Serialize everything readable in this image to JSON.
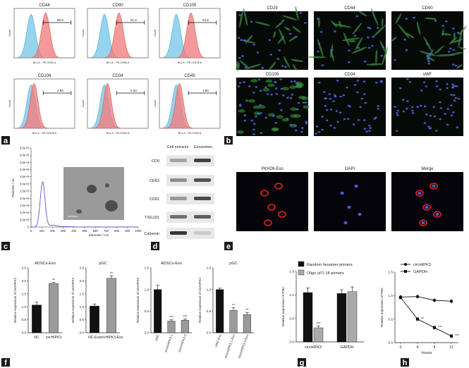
{
  "panels": {
    "a": {
      "letter": "a",
      "histograms": [
        {
          "title": "CD44",
          "gate": "90.6",
          "xlabel": "BL2-A :: PE-CD44-A",
          "ylabel": "Count",
          "positive": true
        },
        {
          "title": "CD90",
          "gate": "91.9",
          "xlabel": "BL2-A :: PE-CD90-A",
          "ylabel": "Count",
          "positive": true
        },
        {
          "title": "CD105",
          "gate": "94.8",
          "xlabel": "BL2-A :: PE-CD105-A",
          "ylabel": "Count",
          "positive": true
        },
        {
          "title": "CD106",
          "gate": "2.93",
          "xlabel": "BL2-A :: PE-CD106-A",
          "ylabel": "Count",
          "positive": false
        },
        {
          "title": "CD34",
          "gate": "0.53",
          "xlabel": "BL2-A :: PE-CD34-A",
          "ylabel": "Count",
          "positive": false
        },
        {
          "title": "CD45",
          "gate": "1.90",
          "xlabel": "BL2-A :: PE-CD45-A",
          "ylabel": "Count",
          "positive": false
        }
      ]
    },
    "b": {
      "letter": "b",
      "images": [
        "CD29",
        "CD44",
        "CD90",
        "CD105",
        "CD34",
        "vWF"
      ]
    },
    "c": {
      "letter": "c",
      "ylabel": "Particles / mL",
      "xlabel": "Diameter / nm",
      "yticks": [
        "5.5e+6",
        "5.0e+6",
        "4.5e+6",
        "4.0e+6",
        "3.5e+6",
        "3.0e+6",
        "2.5e+6",
        "2.0e+6",
        "1.5e+6",
        "1.0e+6",
        "5.0e+5",
        "0"
      ],
      "xticks": [
        "0",
        "100",
        "200",
        "300",
        "400",
        "500",
        "600",
        "700",
        "800",
        "900",
        "1000"
      ]
    },
    "d": {
      "letter": "d",
      "columns": [
        "Cell extracts",
        "Exosomes"
      ],
      "bands": [
        "CD9",
        "CD63",
        "CD81",
        "TSG101",
        "Calnexin"
      ]
    },
    "e": {
      "letter": "e",
      "images": [
        "PKH26-Exo",
        "DAPI",
        "Merge"
      ]
    },
    "f": {
      "letter": "f",
      "charts": [
        {
          "title": "ADSCs-Exo",
          "ylabel": "Relative expression of circHIPK3",
          "categories": [
            "NC",
            "circHIPK3"
          ],
          "values": [
            1.07,
            1.9
          ],
          "errors": [
            0.12,
            0.04
          ],
          "sig": [
            "",
            "**"
          ],
          "ylim": [
            0,
            2.5
          ],
          "yticks": [
            "0.0",
            "0.5",
            "1.0",
            "1.5",
            "2.0",
            "2.5"
          ]
        },
        {
          "title": "pGC",
          "ylabel": "Relative expression of circHIPK3",
          "categories": [
            "NC-Exo",
            "circHIPK3-Exo"
          ],
          "values": [
            1.03,
            2.1
          ],
          "errors": [
            0.08,
            0.1
          ],
          "sig": [
            "",
            "**"
          ],
          "ylim": [
            0,
            2.5
          ],
          "yticks": [
            "0.0",
            "0.5",
            "1.0",
            "1.5",
            "2.0",
            "2.5"
          ]
        },
        {
          "title": "ADSCs-Exo",
          "ylabel": "Relative expression of circHIPK3",
          "categories": [
            "siNC",
            "sicircHIPK3-1",
            "sicircHIPK3-2"
          ],
          "values": [
            1.0,
            0.27,
            0.29
          ],
          "errors": [
            0.1,
            0.03,
            0.03
          ],
          "sig": [
            "",
            "***",
            "***"
          ],
          "ylim": [
            0,
            1.5
          ],
          "yticks": [
            "0.0",
            "0.5",
            "1.0",
            "1.5"
          ]
        },
        {
          "title": "pGC",
          "ylabel": "Relative expression of circHIPK3",
          "categories": [
            "siNC-Exo",
            "sicircHIPK3-1-Exo",
            "sicircHIPK3-2-Exo"
          ],
          "values": [
            1.0,
            0.52,
            0.42
          ],
          "errors": [
            0.03,
            0.06,
            0.05
          ],
          "sig": [
            "",
            "**",
            "**"
          ],
          "ylim": [
            0,
            1.5
          ],
          "yticks": [
            "0.0",
            "0.5",
            "1.0",
            "1.5"
          ]
        }
      ]
    },
    "g": {
      "letter": "g",
      "ylabel": "Relative expression of RNA",
      "categories": [
        "circHIPK3",
        "GAPDH"
      ],
      "legend": [
        "Random hexamer primers",
        "Oligo (dT) 18 primers"
      ],
      "series": [
        {
          "name": "Random hexamer primers",
          "values": [
            1.05,
            1.03
          ],
          "errors": [
            0.1,
            0.08
          ],
          "color": "#111111"
        },
        {
          "name": "Oligo (dT) 18 primers",
          "values": [
            0.3,
            1.07
          ],
          "errors": [
            0.04,
            0.1
          ],
          "color": "#aaaaaa"
        }
      ],
      "sig": "***",
      "ylim": [
        0,
        1.5
      ],
      "yticks": [
        "0.0",
        "0.5",
        "1.0",
        "1.5"
      ]
    },
    "h": {
      "letter": "h",
      "ylabel": "Relative expression of RNA",
      "xlabel": "Hours",
      "x": [
        0,
        4,
        8,
        12
      ],
      "xticks": [
        "0",
        "4",
        "8",
        "12"
      ],
      "series": [
        {
          "name": "circHIPK3",
          "values": [
            0.97,
            0.98,
            0.9,
            0.88
          ],
          "marker": "circle"
        },
        {
          "name": "GAPDH",
          "values": [
            0.96,
            0.5,
            0.32,
            0.14
          ],
          "marker": "square"
        }
      ],
      "sig": [
        "",
        "**",
        "***",
        "***"
      ],
      "ylim": [
        0,
        1.5
      ],
      "yticks": [
        "0.0",
        "0.5",
        "1.0",
        "1.5"
      ]
    }
  },
  "chart_data": [
    {
      "type": "bar",
      "title": "ADSCs-Exo",
      "ylabel": "Relative expression of circHIPK3",
      "categories": [
        "NC",
        "circHIPK3"
      ],
      "values": [
        1.07,
        1.9
      ],
      "ylim": [
        0,
        2.5
      ]
    },
    {
      "type": "bar",
      "title": "pGC",
      "ylabel": "Relative expression of circHIPK3",
      "categories": [
        "NC-Exo",
        "circHIPK3-Exo"
      ],
      "values": [
        1.03,
        2.1
      ],
      "ylim": [
        0,
        2.5
      ]
    },
    {
      "type": "bar",
      "title": "ADSCs-Exo",
      "ylabel": "Relative expression of circHIPK3",
      "categories": [
        "siNC",
        "sicircHIPK3-1",
        "sicircHIPK3-2"
      ],
      "values": [
        1.0,
        0.27,
        0.29
      ],
      "ylim": [
        0,
        1.5
      ]
    },
    {
      "type": "bar",
      "title": "pGC",
      "ylabel": "Relative expression of circHIPK3",
      "categories": [
        "siNC-Exo",
        "sicircHIPK3-1-Exo",
        "sicircHIPK3-2-Exo"
      ],
      "values": [
        1.0,
        0.52,
        0.42
      ],
      "ylim": [
        0,
        1.5
      ]
    },
    {
      "type": "bar",
      "ylabel": "Relative expression of RNA",
      "categories": [
        "circHIPK3",
        "GAPDH"
      ],
      "series": [
        {
          "name": "Random hexamer primers",
          "values": [
            1.05,
            1.03
          ]
        },
        {
          "name": "Oligo (dT) 18 primers",
          "values": [
            0.3,
            1.07
          ]
        }
      ],
      "ylim": [
        0,
        1.5
      ]
    },
    {
      "type": "line",
      "ylabel": "Relative expression of RNA",
      "xlabel": "Hours",
      "x": [
        0,
        4,
        8,
        12
      ],
      "series": [
        {
          "name": "circHIPK3",
          "values": [
            0.97,
            0.98,
            0.9,
            0.88
          ]
        },
        {
          "name": "GAPDH",
          "values": [
            0.96,
            0.5,
            0.32,
            0.14
          ]
        }
      ],
      "ylim": [
        0,
        1.5
      ]
    }
  ]
}
